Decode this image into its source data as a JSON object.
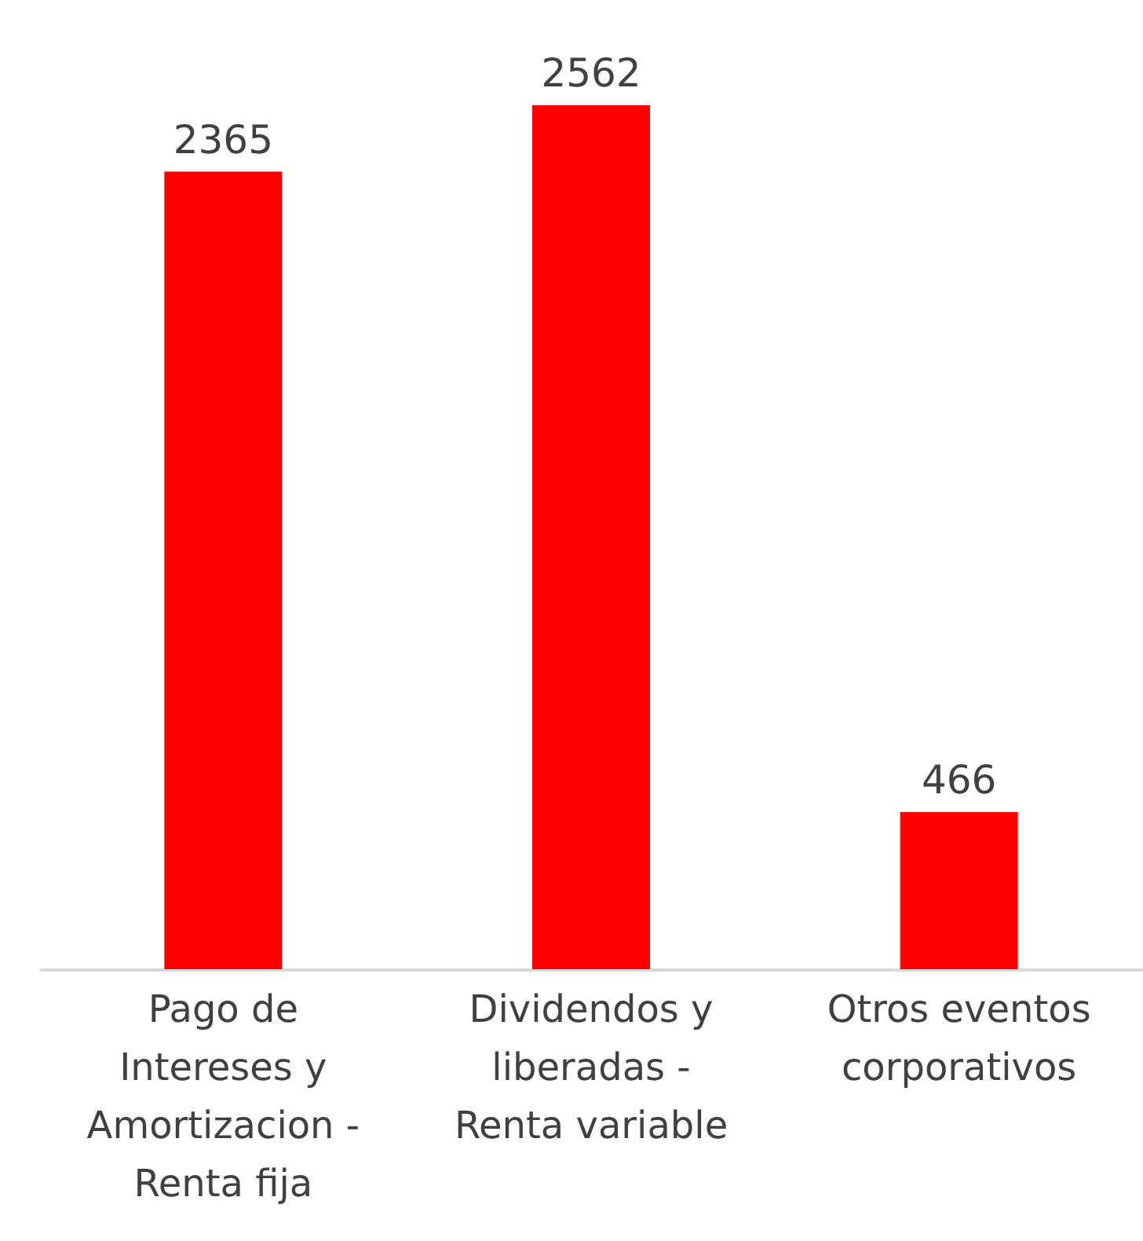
{
  "chart_data": {
    "type": "bar",
    "categories": [
      "Pago de Intereses y Amortizacion - Renta fija",
      "Dividendos y liberadas - Renta variable",
      "Otros eventos corporativos"
    ],
    "values": [
      2365,
      2562,
      466
    ],
    "color": "#ff0000",
    "data_labels": true
  }
}
